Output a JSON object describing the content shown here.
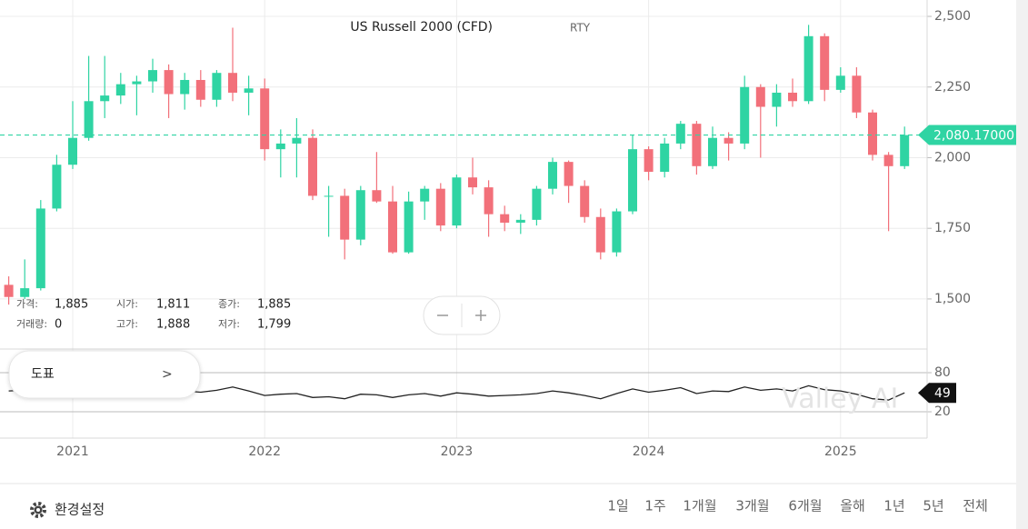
{
  "chart_data": [
    {
      "type": "candlestick",
      "title": "US Russell 2000 (CFD)",
      "subtitle": "RTY",
      "categories": [
        null,
        null,
        null,
        null,
        "2021",
        null,
        null,
        null,
        null,
        null,
        null,
        null,
        null,
        null,
        null,
        null,
        "2022",
        null,
        null,
        null,
        null,
        null,
        null,
        null,
        null,
        null,
        null,
        null,
        "2023",
        null,
        null,
        null,
        null,
        null,
        null,
        null,
        null,
        null,
        null,
        null,
        "2024",
        null,
        null,
        null,
        null,
        null,
        null,
        null,
        null,
        null,
        null,
        null,
        "2025",
        null,
        null,
        null,
        null
      ],
      "open": [
        1550,
        1507,
        1538,
        1820,
        1975,
        2070,
        2200,
        2220,
        2260,
        2270,
        2310,
        2225,
        2275,
        2205,
        2300,
        2230,
        2245,
        2030,
        2050,
        2070,
        1865,
        1865,
        1710,
        1885,
        1845,
        1665,
        1845,
        1890,
        1760,
        1930,
        1895,
        1800,
        1770,
        1780,
        1890,
        1985,
        1900,
        1790,
        1665,
        1810,
        2030,
        1950,
        2050,
        2120,
        1970,
        2070,
        2050,
        2250,
        2180,
        2230,
        2200,
        2430,
        2240,
        2290,
        2160,
        2010,
        1970
      ],
      "high": [
        1580,
        1640,
        1850,
        2010,
        2200,
        2360,
        2360,
        2300,
        2290,
        2350,
        2330,
        2300,
        2310,
        2310,
        2460,
        2290,
        2280,
        2100,
        2140,
        2100,
        1900,
        1890,
        1900,
        2020,
        1900,
        1880,
        1900,
        1910,
        1940,
        2000,
        1920,
        1830,
        1800,
        1900,
        2000,
        1990,
        1920,
        1820,
        1820,
        2080,
        2040,
        2070,
        2130,
        2130,
        2110,
        2090,
        2290,
        2260,
        2260,
        2280,
        2470,
        2440,
        2320,
        2320,
        2170,
        2020,
        2110
      ],
      "low": [
        1480,
        1500,
        1530,
        1810,
        1960,
        2060,
        2140,
        2190,
        2150,
        2230,
        2140,
        2170,
        2180,
        2180,
        2200,
        2150,
        1990,
        1930,
        1930,
        1850,
        1720,
        1640,
        1690,
        1840,
        1660,
        1660,
        1780,
        1740,
        1750,
        1870,
        1720,
        1740,
        1730,
        1760,
        1870,
        1840,
        1770,
        1640,
        1650,
        1800,
        1920,
        1930,
        2030,
        1940,
        1960,
        1990,
        2030,
        2000,
        2110,
        2180,
        2190,
        2200,
        2230,
        2140,
        1990,
        1740,
        1960
      ],
      "close": [
        1507,
        1538,
        1820,
        1975,
        2070,
        2200,
        2220,
        2260,
        2270,
        2310,
        2225,
        2275,
        2205,
        2300,
        2230,
        2245,
        2030,
        2050,
        2070,
        1865,
        1865,
        1710,
        1885,
        1845,
        1665,
        1845,
        1890,
        1760,
        1930,
        1895,
        1800,
        1770,
        1780,
        1890,
        1985,
        1900,
        1790,
        1665,
        1810,
        2030,
        1950,
        2050,
        2120,
        1970,
        2070,
        2050,
        2250,
        2180,
        2230,
        2200,
        2430,
        2240,
        2290,
        2160,
        2010,
        1970,
        2080
      ],
      "up_color": "#2fd4a3",
      "down_color": "#f2707a",
      "ylim": [
        1326,
        2558
      ],
      "yticks": [
        {
          "value": 1500,
          "label": "1,500"
        },
        {
          "value": 1750,
          "label": "1,750"
        },
        {
          "value": 2000,
          "label": "2,000"
        },
        {
          "value": 2250,
          "label": "2,250"
        },
        {
          "value": 2500,
          "label": "2,500"
        }
      ],
      "last_price": {
        "value": 2080.17,
        "label": "2,080.17000"
      },
      "grid": true
    },
    {
      "type": "line",
      "values": [
        52,
        53,
        56,
        58,
        55,
        54,
        52,
        50,
        53,
        51,
        49,
        52,
        50,
        53,
        58,
        52,
        45,
        47,
        48,
        42,
        43,
        40,
        47,
        46,
        42,
        46,
        48,
        44,
        49,
        47,
        44,
        45,
        46,
        48,
        52,
        49,
        45,
        40,
        48,
        55,
        50,
        53,
        57,
        48,
        52,
        51,
        58,
        53,
        55,
        52,
        60,
        54,
        52,
        47,
        40,
        38,
        49
      ],
      "color": "#222222",
      "ylim": [
        -20.4,
        113.5
      ],
      "yticks": [
        20,
        80
      ]
    }
  ],
  "ohlc_info": {
    "price_label": "가격:",
    "price": "1,885",
    "open_label": "시가:",
    "open": "1,811",
    "close_label": "종가:",
    "close": "1,885",
    "volume_label": "거래량:",
    "volume": "0",
    "high_label": "고가:",
    "high": "1,888",
    "low_label": "저가:",
    "low": "1,799"
  },
  "popover": {
    "label": "도표",
    "chevron": ">"
  },
  "watermark": "Valley AI",
  "footer": {
    "settings": "환경설정",
    "ranges": [
      "1일",
      "1주",
      "1개월",
      "3개월",
      "6개월",
      "올해",
      "1년",
      "5년",
      "전체"
    ]
  }
}
